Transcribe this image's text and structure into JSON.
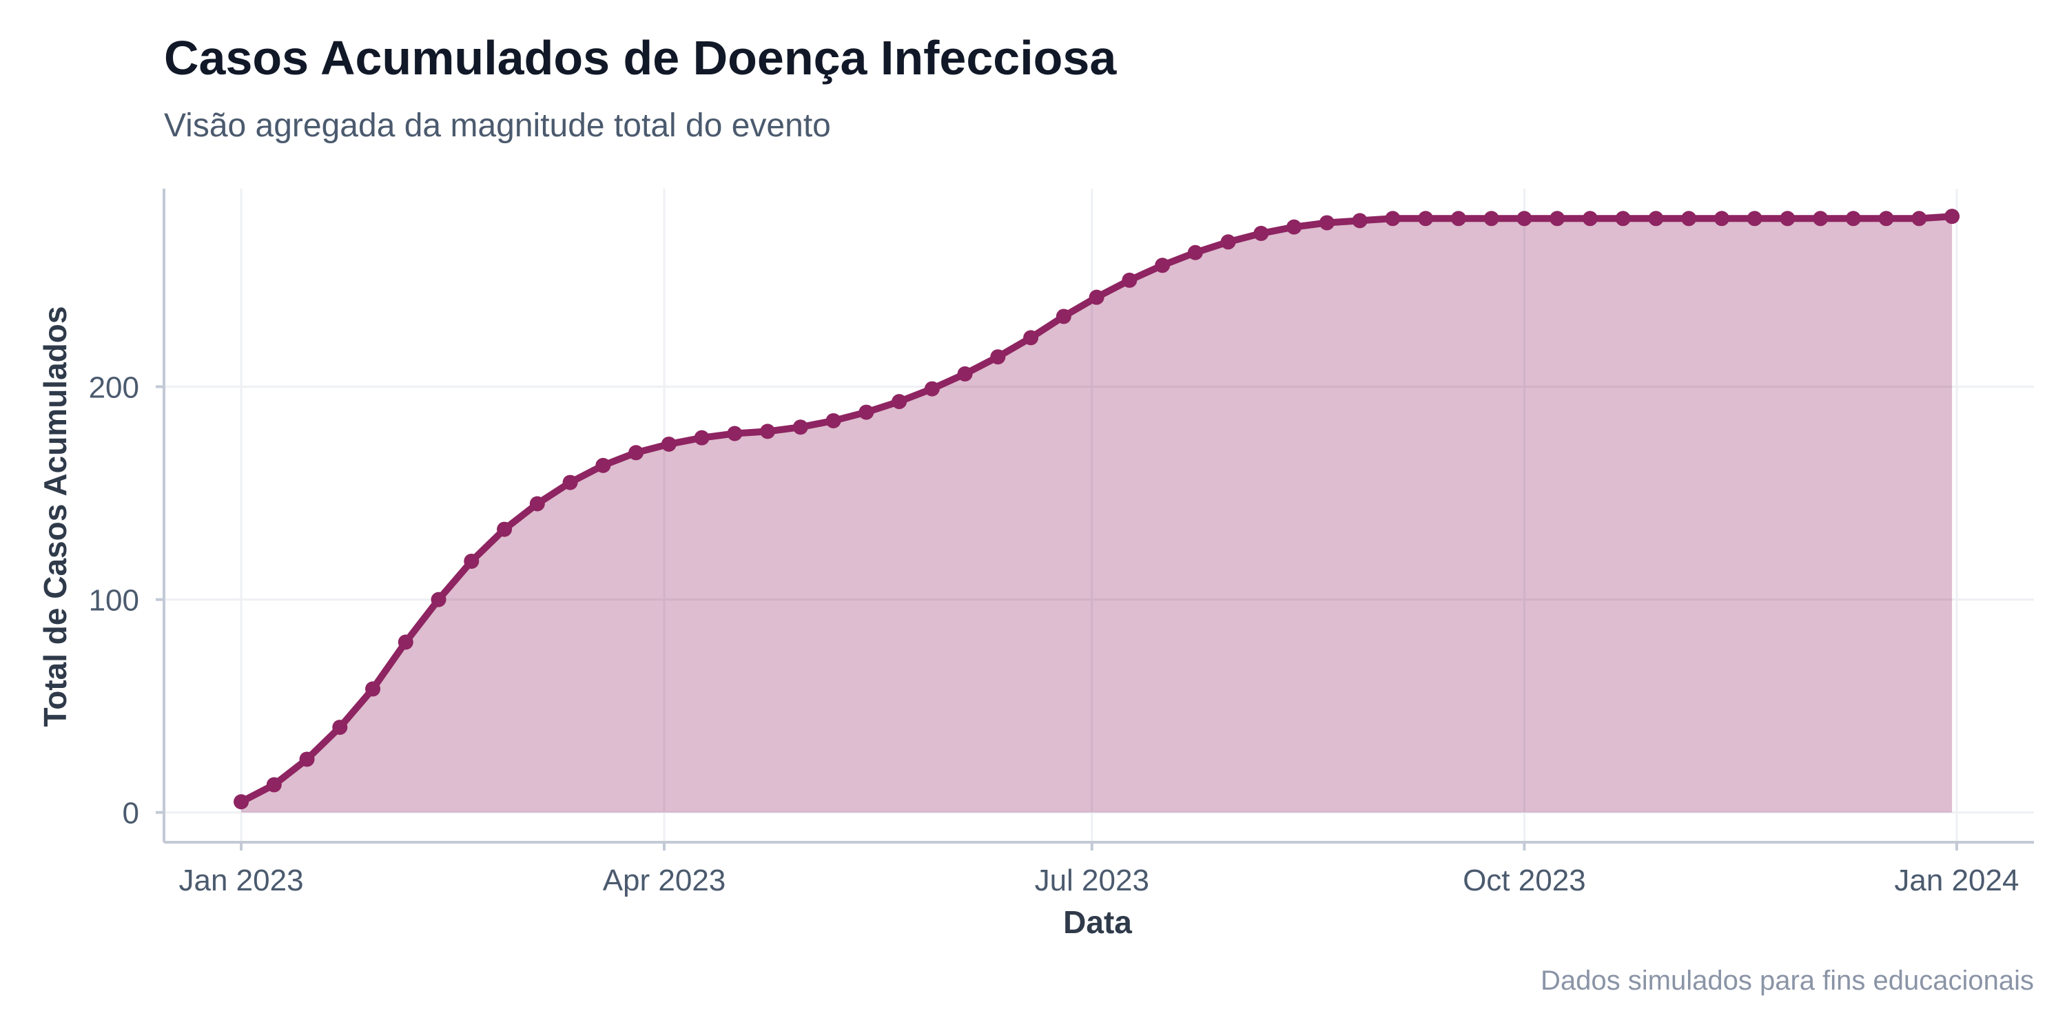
{
  "chart_data": {
    "type": "area",
    "title": "Casos Acumulados de Doença Infecciosa",
    "subtitle": "Visão agregada da magnitude total do evento",
    "xlabel": "Data",
    "ylabel": "Total de Casos Acumulados",
    "caption": "Dados simulados para fins educacionais",
    "x_start": "2023-01-01",
    "x_interval_days": 7,
    "x_ticks": [
      {
        "label": "Jan 2023",
        "day": 0
      },
      {
        "label": "Apr 2023",
        "day": 90
      },
      {
        "label": "Jul 2023",
        "day": 181
      },
      {
        "label": "Oct 2023",
        "day": 273
      },
      {
        "label": "Jan 2024",
        "day": 365
      }
    ],
    "ylim": [
      -14,
      293
    ],
    "y_ticks": [
      0,
      100,
      200
    ],
    "series": [
      {
        "name": "Total de Casos Acumulados",
        "color": "#8e2461",
        "fill_color": "#8e2461",
        "values": [
          5,
          13,
          25,
          40,
          58,
          80,
          100,
          118,
          133,
          145,
          155,
          163,
          169,
          173,
          176,
          178,
          179,
          181,
          184,
          188,
          193,
          199,
          206,
          214,
          223,
          233,
          242,
          250,
          257,
          263,
          268,
          272,
          275,
          277,
          278,
          279,
          279,
          279,
          279,
          279,
          279,
          279,
          279,
          279,
          279,
          279,
          279,
          279,
          279,
          279,
          279,
          279,
          280
        ]
      }
    ],
    "grid": true,
    "legend": "none"
  },
  "colors": {
    "grid": "#eef0f4",
    "axis": "#c3cad6"
  }
}
